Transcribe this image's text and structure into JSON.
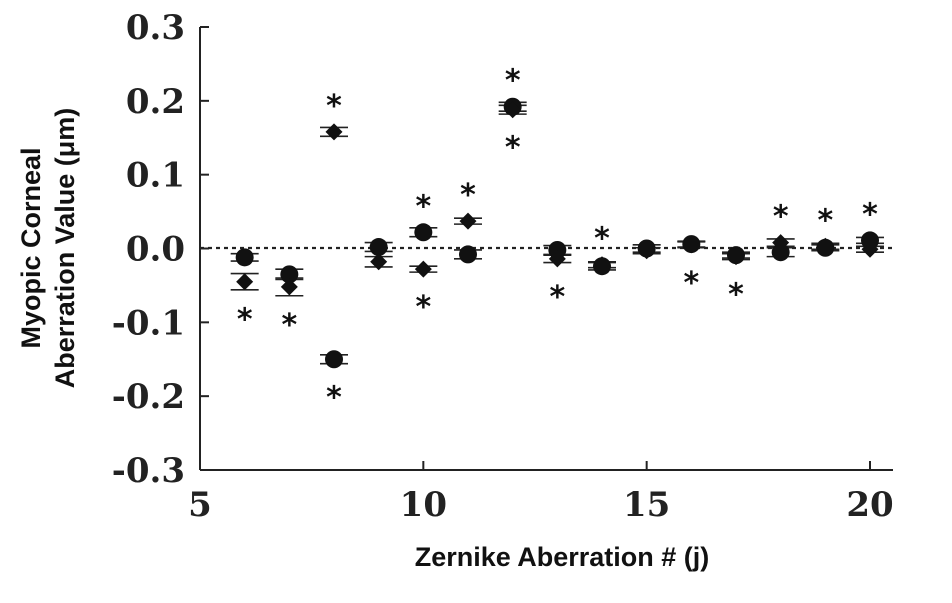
{
  "chart_data": {
    "type": "scatter",
    "title": "",
    "xlabel": "Zernike Aberration # (j)",
    "ylabel_line1": "Myopic Corneal",
    "ylabel_line2": "Aberration Value (μm)",
    "xlim": [
      5,
      20
    ],
    "ylim": [
      -0.3,
      0.3
    ],
    "x_ticks": [
      5,
      10,
      15,
      20
    ],
    "x_tick_labels": [
      "5",
      "10",
      "15",
      "20"
    ],
    "y_ticks": [
      0.3,
      0.2,
      0.1,
      0.0,
      -0.1,
      -0.2,
      -0.3
    ],
    "y_tick_labels": [
      "0.3",
      "0.2",
      "0.1",
      "0.0",
      "-0.1",
      "-0.2",
      "-0.3"
    ],
    "reference_line": {
      "y": 0,
      "style": "dotted"
    },
    "grid": false,
    "significance_marker": "*",
    "series": [
      {
        "marker": "circle",
        "points": [
          {
            "x": 6,
            "y": -0.012,
            "err": 0.005,
            "sig": false
          },
          {
            "x": 7,
            "y": -0.035,
            "err": 0.007,
            "sig": false
          },
          {
            "x": 8,
            "y": -0.15,
            "err": 0.006,
            "sig": true
          },
          {
            "x": 9,
            "y": 0.002,
            "err": 0.006,
            "sig": false
          },
          {
            "x": 10,
            "y": 0.022,
            "err": 0.006,
            "sig": true
          },
          {
            "x": 11,
            "y": -0.008,
            "err": 0.006,
            "sig": false
          },
          {
            "x": 12,
            "y": 0.192,
            "err": 0.006,
            "sig": true
          },
          {
            "x": 13,
            "y": -0.002,
            "err": 0.006,
            "sig": false
          },
          {
            "x": 14,
            "y": -0.024,
            "err": 0.005,
            "sig": false
          },
          {
            "x": 15,
            "y": 0.0,
            "err": 0.005,
            "sig": false
          },
          {
            "x": 16,
            "y": 0.006,
            "err": 0.004,
            "sig": false
          },
          {
            "x": 17,
            "y": -0.009,
            "err": 0.004,
            "sig": false
          },
          {
            "x": 18,
            "y": -0.005,
            "err": 0.006,
            "sig": false
          },
          {
            "x": 19,
            "y": 0.001,
            "err": 0.004,
            "sig": false
          },
          {
            "x": 20,
            "y": 0.011,
            "err": 0.004,
            "sig": true
          }
        ]
      },
      {
        "marker": "diamond",
        "points": [
          {
            "x": 6,
            "y": -0.045,
            "err": 0.011,
            "sig": true
          },
          {
            "x": 7,
            "y": -0.052,
            "err": 0.012,
            "sig": true
          },
          {
            "x": 8,
            "y": 0.158,
            "err": 0.006,
            "sig": true
          },
          {
            "x": 9,
            "y": -0.018,
            "err": 0.007,
            "sig": false
          },
          {
            "x": 10,
            "y": -0.028,
            "err": 0.004,
            "sig": true
          },
          {
            "x": 11,
            "y": 0.037,
            "err": 0.004,
            "sig": true
          },
          {
            "x": 12,
            "y": 0.188,
            "err": 0.006,
            "sig": true
          },
          {
            "x": 13,
            "y": -0.014,
            "err": 0.005,
            "sig": true
          },
          {
            "x": 14,
            "y": -0.022,
            "err": 0.004,
            "sig": true
          },
          {
            "x": 15,
            "y": -0.003,
            "err": 0.004,
            "sig": false
          },
          {
            "x": 16,
            "y": 0.005,
            "err": 0.004,
            "sig": true
          },
          {
            "x": 17,
            "y": -0.011,
            "err": 0.004,
            "sig": true
          },
          {
            "x": 18,
            "y": 0.008,
            "err": 0.005,
            "sig": true
          },
          {
            "x": 19,
            "y": 0.003,
            "err": 0.004,
            "sig": true
          },
          {
            "x": 20,
            "y": -0.001,
            "err": 0.004,
            "sig": false
          }
        ]
      }
    ]
  }
}
